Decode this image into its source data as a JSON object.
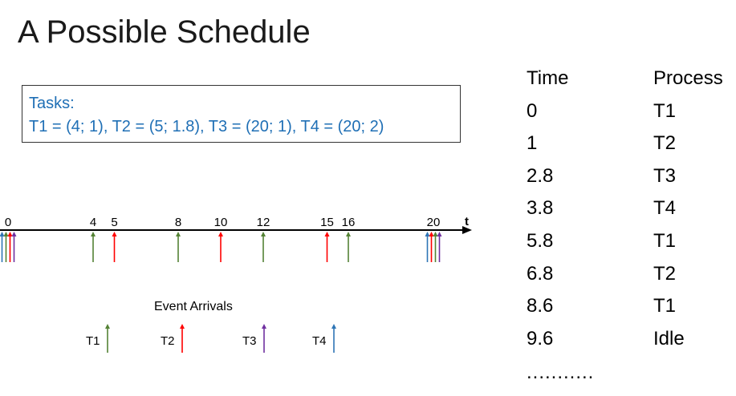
{
  "title": "A Possible Schedule",
  "tasks_box": {
    "heading": "Tasks:",
    "definition": "T1 = (4; 1), T2 = (5; 1.8), T3 = (20; 1), T4 = (20; 2)"
  },
  "timeline": {
    "axis_label": "t",
    "ticks": [
      "0",
      "4",
      "5",
      "8",
      "10",
      "12",
      "15",
      "16",
      "20"
    ],
    "arrivals": [
      {
        "time": 0,
        "task": "T4",
        "color": "#2e75b6"
      },
      {
        "time": 0,
        "task": "T1",
        "color": "#548235"
      },
      {
        "time": 0,
        "task": "T2",
        "color": "#ff0000"
      },
      {
        "time": 0,
        "task": "T3",
        "color": "#7030a0"
      },
      {
        "time": 4,
        "task": "T1",
        "color": "#548235"
      },
      {
        "time": 5,
        "task": "T2",
        "color": "#ff0000"
      },
      {
        "time": 8,
        "task": "T1",
        "color": "#548235"
      },
      {
        "time": 10,
        "task": "T2",
        "color": "#ff0000"
      },
      {
        "time": 12,
        "task": "T1",
        "color": "#548235"
      },
      {
        "time": 15,
        "task": "T2",
        "color": "#ff0000"
      },
      {
        "time": 16,
        "task": "T1",
        "color": "#548235"
      },
      {
        "time": 20,
        "task": "T4",
        "color": "#2e75b6"
      },
      {
        "time": 20,
        "task": "T2",
        "color": "#ff0000"
      },
      {
        "time": 20,
        "task": "T1",
        "color": "#548235"
      },
      {
        "time": 20,
        "task": "T3",
        "color": "#7030a0"
      }
    ]
  },
  "legend": {
    "title": "Event Arrivals",
    "items": [
      {
        "label": "T1",
        "color": "#548235"
      },
      {
        "label": "T2",
        "color": "#ff0000"
      },
      {
        "label": "T3",
        "color": "#7030a0"
      },
      {
        "label": "T4",
        "color": "#2e75b6"
      }
    ]
  },
  "schedule": {
    "headers": [
      "Time",
      "Process"
    ],
    "rows": [
      [
        "0",
        "T1"
      ],
      [
        "1",
        "T2"
      ],
      [
        "2.8",
        "T3"
      ],
      [
        "3.8",
        "T4"
      ],
      [
        "5.8",
        "T1"
      ],
      [
        "6.8",
        "T2"
      ],
      [
        "8.6",
        "T1"
      ],
      [
        "9.6",
        "Idle"
      ]
    ],
    "ellipsis": "..........."
  }
}
